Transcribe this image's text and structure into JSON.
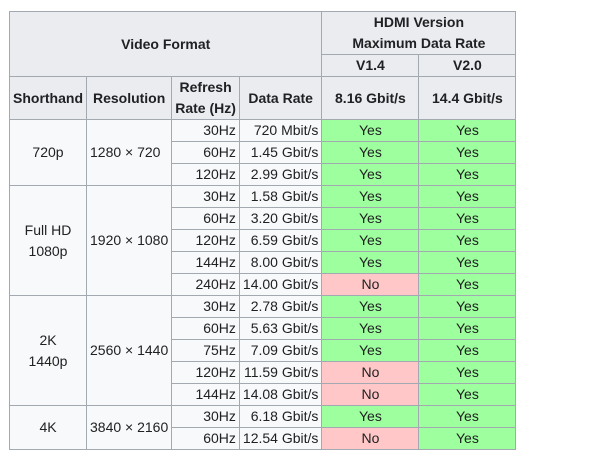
{
  "header": {
    "video_format": "Video Format",
    "hdmi_line1": "HDMI Version",
    "hdmi_line2": "Maximum Data Rate",
    "shorthand": "Shorthand",
    "resolution": "Resolution",
    "refresh_line1": "Refresh",
    "refresh_line2": "Rate (Hz)",
    "data_rate": "Data Rate",
    "v14": "V1.4",
    "v20": "V2.0",
    "v14_rate": "8.16 Gbit/s",
    "v20_rate": "14.4 Gbit/s"
  },
  "groups": [
    {
      "shorthand": [
        "720p"
      ],
      "resolution": "1280 × 720",
      "rows": [
        {
          "rate": "30Hz",
          "data_rate": "720 Mbit/s",
          "v14": "Yes",
          "v20": "Yes"
        },
        {
          "rate": "60Hz",
          "data_rate": "1.45 Gbit/s",
          "v14": "Yes",
          "v20": "Yes"
        },
        {
          "rate": "120Hz",
          "data_rate": "2.99 Gbit/s",
          "v14": "Yes",
          "v20": "Yes"
        }
      ]
    },
    {
      "shorthand": [
        "Full HD",
        "1080p"
      ],
      "resolution": "1920 × 1080",
      "rows": [
        {
          "rate": "30Hz",
          "data_rate": "1.58 Gbit/s",
          "v14": "Yes",
          "v20": "Yes"
        },
        {
          "rate": "60Hz",
          "data_rate": "3.20 Gbit/s",
          "v14": "Yes",
          "v20": "Yes"
        },
        {
          "rate": "120Hz",
          "data_rate": "6.59 Gbit/s",
          "v14": "Yes",
          "v20": "Yes"
        },
        {
          "rate": "144Hz",
          "data_rate": "8.00 Gbit/s",
          "v14": "Yes",
          "v20": "Yes"
        },
        {
          "rate": "240Hz",
          "data_rate": "14.00 Gbit/s",
          "v14": "No",
          "v20": "Yes"
        }
      ]
    },
    {
      "shorthand": [
        "2K",
        "1440p"
      ],
      "resolution": "2560 × 1440",
      "rows": [
        {
          "rate": "30Hz",
          "data_rate": "2.78 Gbit/s",
          "v14": "Yes",
          "v20": "Yes"
        },
        {
          "rate": "60Hz",
          "data_rate": "5.63 Gbit/s",
          "v14": "Yes",
          "v20": "Yes"
        },
        {
          "rate": "75Hz",
          "data_rate": "7.09 Gbit/s",
          "v14": "Yes",
          "v20": "Yes"
        },
        {
          "rate": "120Hz",
          "data_rate": "11.59 Gbit/s",
          "v14": "No",
          "v20": "Yes"
        },
        {
          "rate": "144Hz",
          "data_rate": "14.08 Gbit/s",
          "v14": "No",
          "v20": "Yes"
        }
      ]
    },
    {
      "shorthand": [
        "4K"
      ],
      "resolution": "3840 × 2160",
      "rows": [
        {
          "rate": "30Hz",
          "data_rate": "6.18 Gbit/s",
          "v14": "Yes",
          "v20": "Yes"
        },
        {
          "rate": "60Hz",
          "data_rate": "12.54 Gbit/s",
          "v14": "No",
          "v20": "Yes"
        }
      ]
    }
  ],
  "colors": {
    "yes": "#9eff9e",
    "no": "#ffc7c7",
    "header_bg": "#eaecf0",
    "cell_bg": "#f8f9fa",
    "border": "#a2a9b1"
  }
}
